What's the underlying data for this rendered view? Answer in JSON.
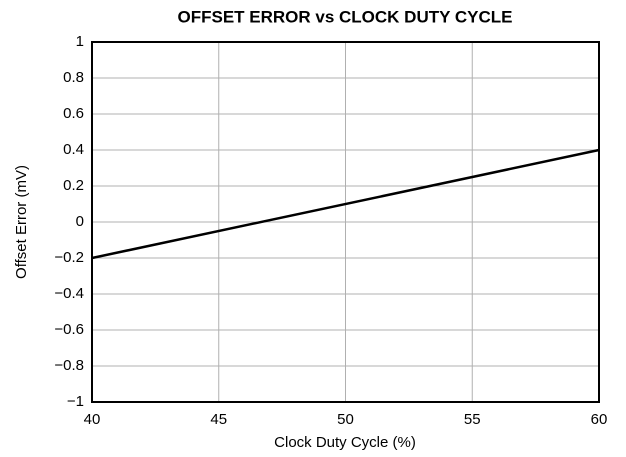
{
  "chart_data": {
    "type": "line",
    "title": "OFFSET ERROR vs CLOCK DUTY CYCLE",
    "x_label": "Clock Duty Cycle (%)",
    "y_label": "Offset Error (mV)",
    "x": [
      40,
      60
    ],
    "values": [
      -0.2,
      0.4
    ],
    "color": "#000000",
    "xlim": [
      40,
      60
    ],
    "xticks": [
      40,
      45,
      50,
      55,
      60
    ],
    "ylim": [
      -1,
      1
    ],
    "yticks": [
      {
        "value": -1,
        "label": "−1"
      },
      {
        "value": -0.8,
        "label": "−0.8"
      },
      {
        "value": -0.6,
        "label": "−0.6"
      },
      {
        "value": -0.4,
        "label": "−0.4"
      },
      {
        "value": -0.2,
        "label": "−0.2"
      },
      0,
      0.2,
      0.4,
      0.6,
      0.8,
      1
    ],
    "grid": true
  }
}
